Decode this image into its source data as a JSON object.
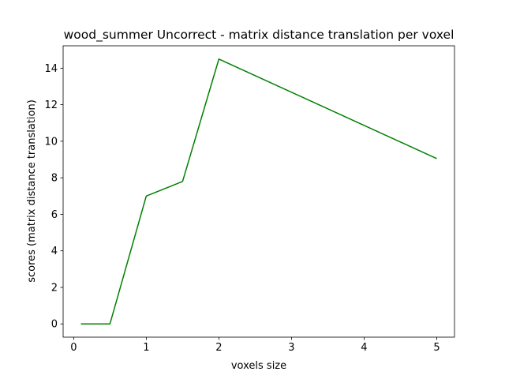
{
  "chart_data": {
    "type": "line",
    "title": "wood_summer Uncorrect - matrix distance translation per voxel",
    "xlabel": "voxels size",
    "ylabel": "scores (matrix distance translation)",
    "xlim": [
      -0.145,
      5.245
    ],
    "ylim": [
      -0.725,
      15.225
    ],
    "xticks": [
      0,
      1,
      2,
      3,
      4,
      5
    ],
    "yticks": [
      0,
      2,
      4,
      6,
      8,
      10,
      12,
      14
    ],
    "grid": false,
    "series": [
      {
        "color": "#008000",
        "x": [
          0.1,
          0.5,
          1.0,
          1.5,
          2.0,
          5.0
        ],
        "y": [
          0.0,
          0.0,
          7.0,
          7.8,
          14.5,
          9.05
        ]
      }
    ]
  }
}
